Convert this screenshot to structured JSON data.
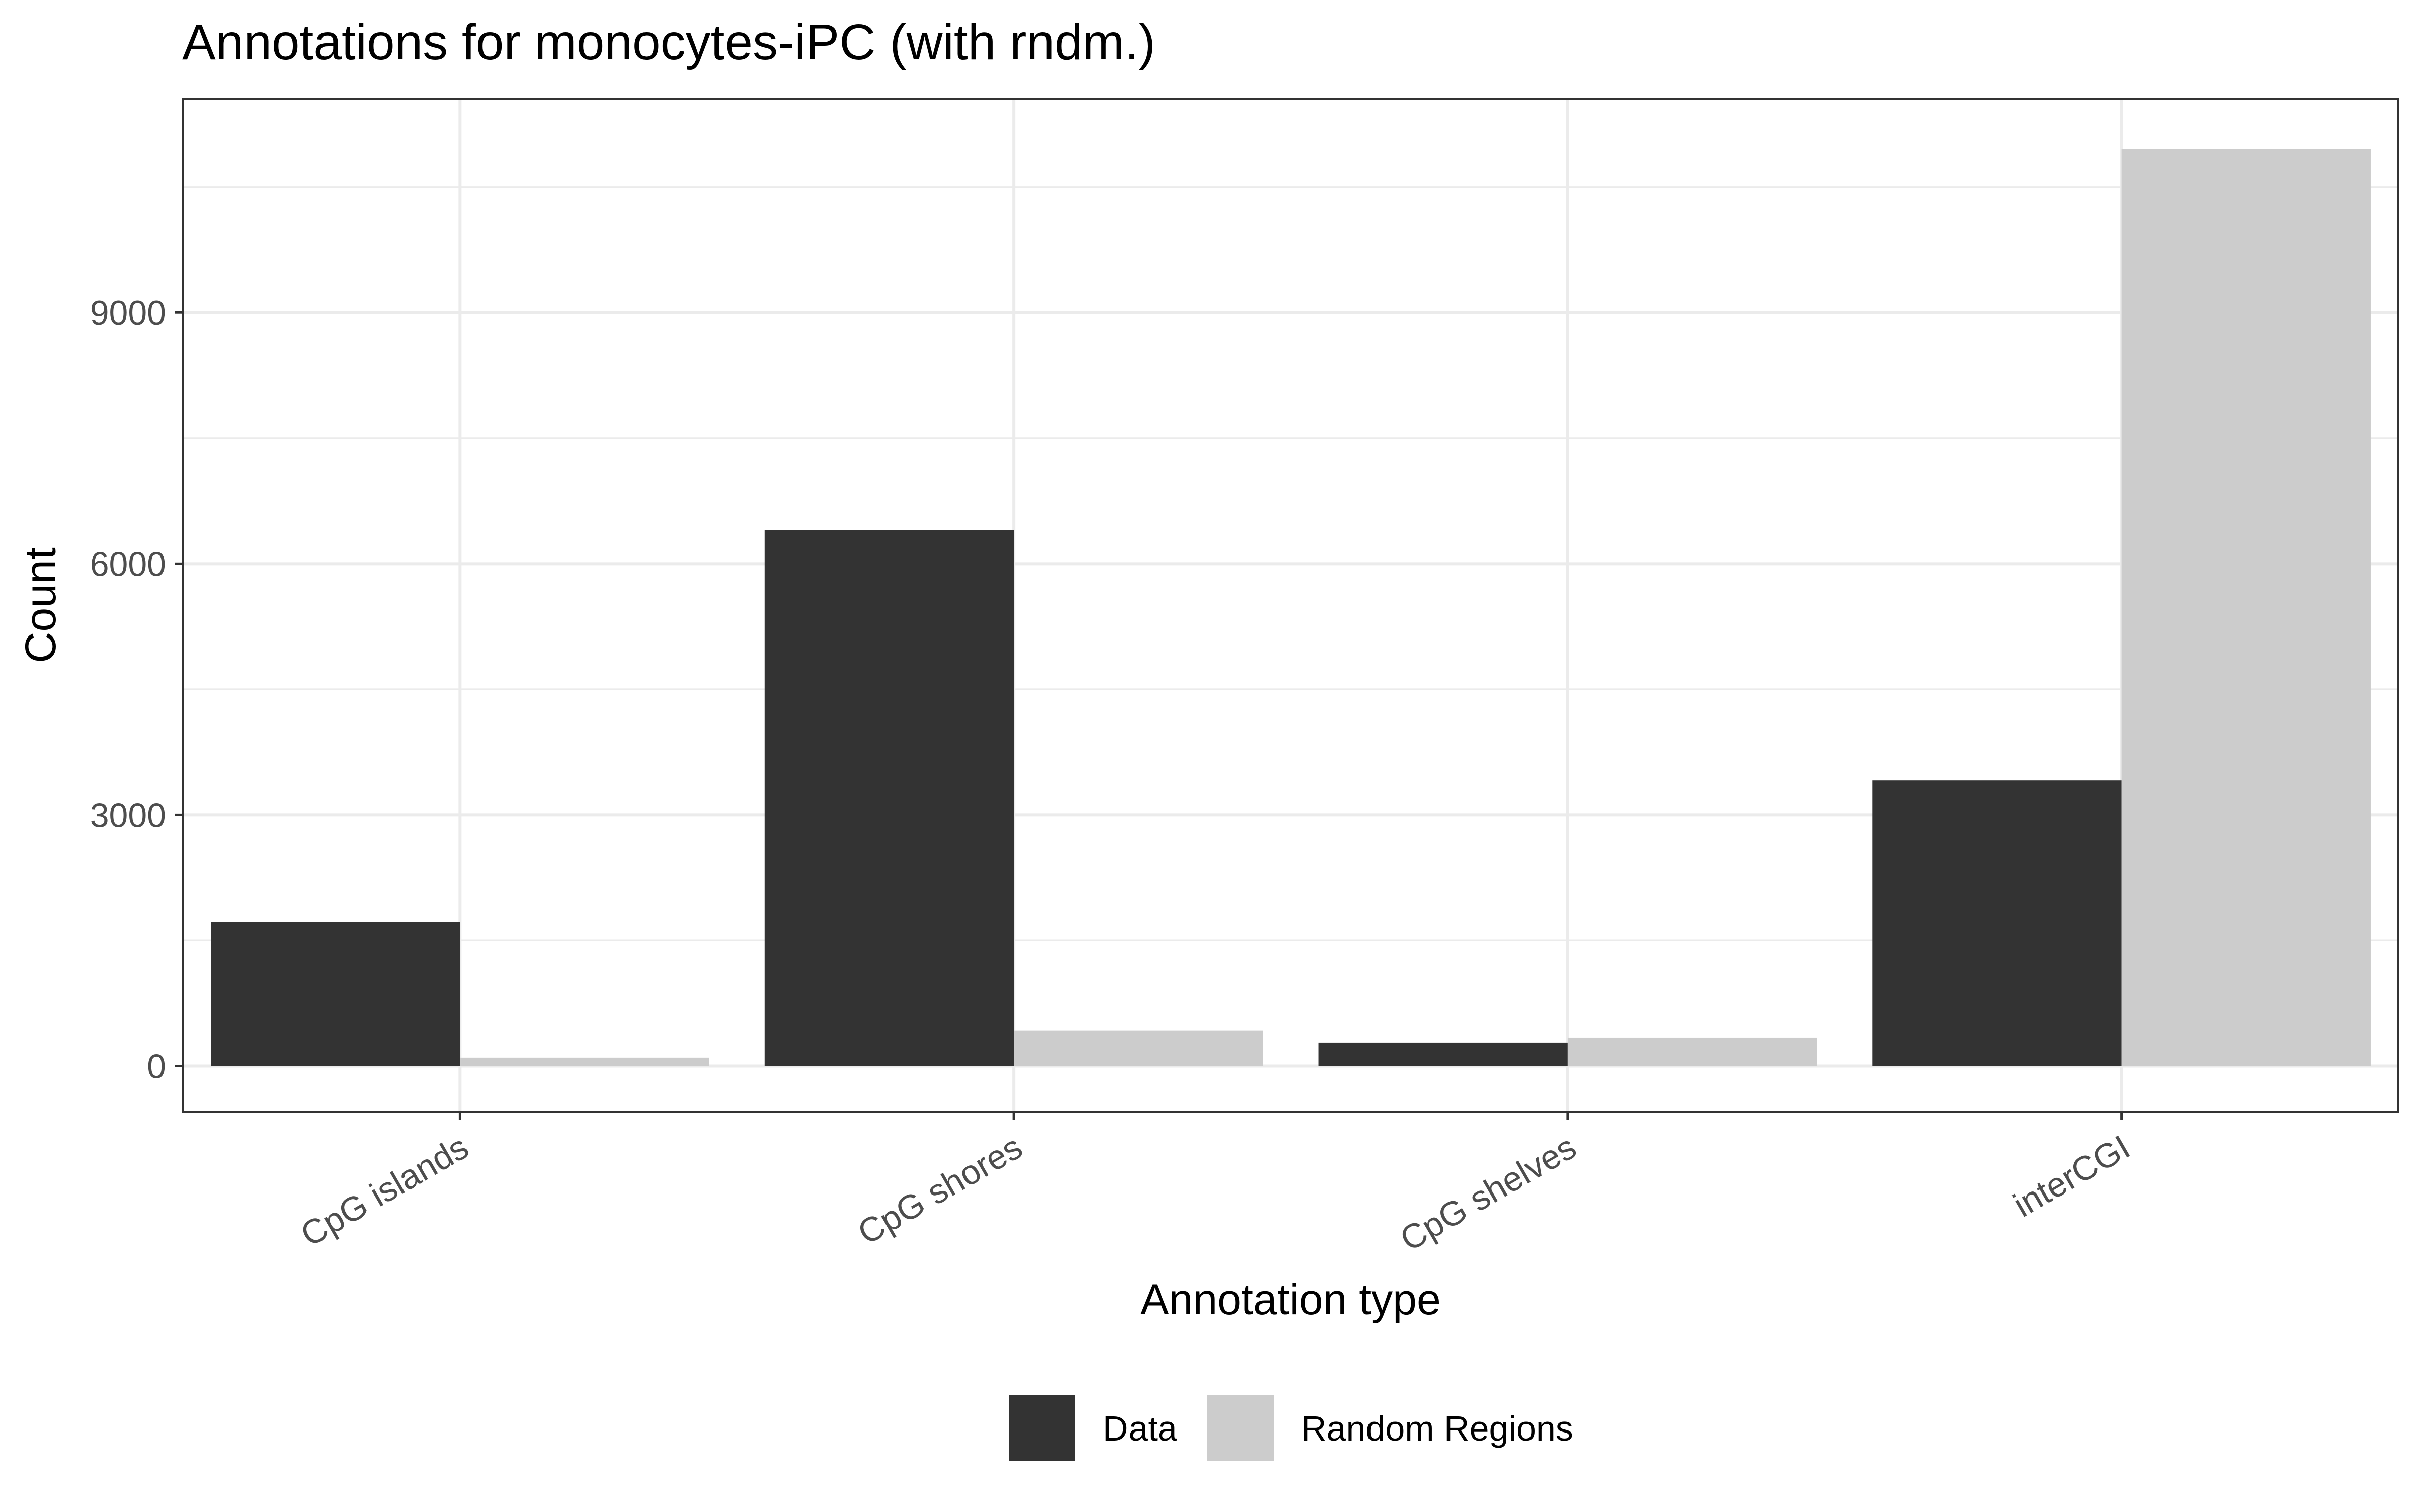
{
  "chart_data": {
    "type": "bar",
    "title": "Annotations for monocytes-iPC (with rndm.)",
    "xlabel": "Annotation type",
    "ylabel": "Count",
    "categories": [
      "CpG islands",
      "CpG shores",
      "CpG shelves",
      "interCGI"
    ],
    "series": [
      {
        "name": "Data",
        "values": [
          1720,
          6400,
          280,
          3410
        ],
        "color": "#333333"
      },
      {
        "name": "Random Regions",
        "values": [
          100,
          420,
          340,
          10950
        ],
        "color": "#cccccc"
      }
    ],
    "ylim": [
      -550,
      11550
    ],
    "yticks": [
      0,
      3000,
      6000,
      9000
    ],
    "yticks_minor": [
      1500,
      4500,
      7500,
      10500
    ],
    "grid": true,
    "legend_position": "bottom",
    "panel_background": "#ffffff",
    "grid_color": "#ebebeb",
    "border_color": "#333333"
  }
}
